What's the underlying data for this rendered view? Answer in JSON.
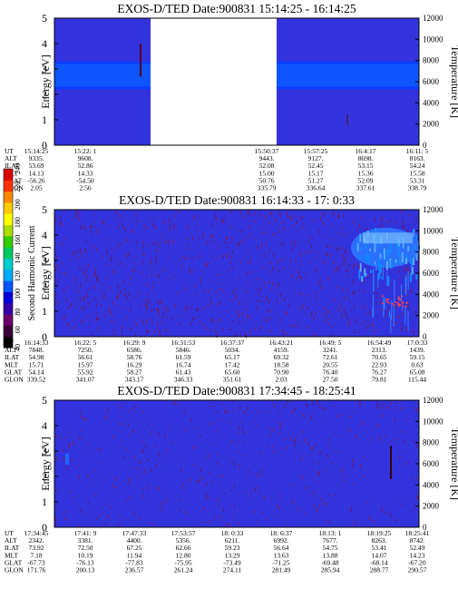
{
  "chart_data": [
    {
      "type": "heatmap",
      "title": "EXOS-D/TED   Date:900831   15:14:25 - 16:14:25",
      "ylabel": "Energy [eV]",
      "y2label": "Temperature [K]",
      "ylim": [
        0,
        5
      ],
      "y2lim": [
        0,
        12000
      ],
      "yticks": [
        "0",
        "1",
        "2",
        "3",
        "4",
        "5"
      ],
      "y2ticks": [
        "0",
        "2000",
        "4000",
        "6000",
        "8000",
        "10000",
        "12000"
      ],
      "band_center_ev": 2.75,
      "data_gap": true,
      "table_rows": [
        {
          "label": "UT",
          "values": [
            "15:14:25",
            "15:22: 1",
            "",
            "",
            "15:50:37",
            "15:57:25",
            "16:4:17",
            "16:11: 5"
          ]
        },
        {
          "label": "ALT",
          "values": [
            "9335.",
            "9608.",
            "",
            "",
            "9443.",
            "9127.",
            "8698.",
            "8163."
          ]
        },
        {
          "label": "ILAT",
          "values": [
            "53.69",
            "52.86",
            "",
            "",
            "52.08",
            "52.45",
            "53.15",
            "54.24"
          ]
        },
        {
          "label": "MLT",
          "values": [
            "14.13",
            "14.33",
            "",
            "",
            "15.00",
            "15.17",
            "15.36",
            "15.58"
          ]
        },
        {
          "label": "GLAT",
          "values": [
            "-56.26",
            "-54.50",
            "",
            "",
            "50.76",
            "51.27",
            "52.09",
            "53.31"
          ]
        },
        {
          "label": "GLON",
          "values": [
            "2.05",
            "2.56",
            "",
            "",
            "335.79",
            "336.64",
            "337.61",
            "338.79"
          ]
        }
      ]
    },
    {
      "type": "heatmap",
      "title": "EXOS-D/TED   Date:900831   16:14:33 - 17: 0:33",
      "ylabel": "Energy [eV]",
      "y2label": "Temperature [K]",
      "ylim": [
        0,
        5
      ],
      "y2lim": [
        0,
        12000
      ],
      "yticks": [
        "0",
        "1",
        "2",
        "3",
        "4",
        "5"
      ],
      "y2ticks": [
        "0",
        "2000",
        "4000",
        "6000",
        "8000",
        "10000",
        "12000"
      ],
      "colorbar": {
        "label": "Second Harmonic Current",
        "ticks": [
          "40",
          "60",
          "80",
          "100",
          "120",
          "140",
          "160",
          "180",
          "200",
          "220",
          "240"
        ],
        "colors": [
          "#000000",
          "#3a003a",
          "#6a006a",
          "#3300aa",
          "#0000dd",
          "#0055ff",
          "#00aaff",
          "#00cccc",
          "#00cc66",
          "#33cc00",
          "#aadd00",
          "#ffff00",
          "#ffcc00",
          "#ff8800",
          "#ff3300",
          "#dd0000"
        ]
      },
      "table_rows": [
        {
          "label": "UT",
          "values": [
            "16:14:33",
            "16:22: 5",
            "16:29: 9",
            "16:31:53",
            "16:37:37",
            "16:43:21",
            "16:49: 5",
            "16:54:49",
            "17:0:33"
          ]
        },
        {
          "label": "ALT",
          "values": [
            "7848.",
            "7250.",
            "6586.",
            "5846.",
            "5034.",
            "4159.",
            "3241.",
            "2313.",
            "1439."
          ]
        },
        {
          "label": "ILAT",
          "values": [
            "54.98",
            "56.61",
            "58.76",
            "61.59",
            "65.17",
            "69.32",
            "72.61",
            "70.65",
            "59.15"
          ]
        },
        {
          "label": "MLT",
          "values": [
            "15.71",
            "15.97",
            "16.29",
            "16.74",
            "17.42",
            "18.58",
            "20.55",
            "22.93",
            "0.63"
          ]
        },
        {
          "label": "GLAT",
          "values": [
            "54.14",
            "55.92",
            "58.27",
            "61.43",
            "65.60",
            "70.90",
            "76.40",
            "76.27",
            "65.08"
          ]
        },
        {
          "label": "GLON",
          "values": [
            "339.52",
            "341.07",
            "343.17",
            "346.33",
            "351.61",
            "2.03",
            "27.50",
            "79.81",
            "115.44"
          ]
        }
      ]
    },
    {
      "type": "heatmap",
      "title": "EXOS-D/TED   Date:900831   17:34:45 - 18:25:41",
      "ylabel": "Energy [eV]",
      "y2label": "Temperature [K]",
      "ylim": [
        0,
        5
      ],
      "y2lim": [
        0,
        12000
      ],
      "yticks": [
        "0",
        "1",
        "2",
        "3",
        "4",
        "5"
      ],
      "y2ticks": [
        "0",
        "2000",
        "4000",
        "6000",
        "8000",
        "10000",
        "12000"
      ],
      "table_rows": [
        {
          "label": "UT",
          "values": [
            "17:34:45",
            "17:41: 9",
            "17:47:33",
            "17:53:57",
            "18: 0:33",
            "18: 6:37",
            "18:13: 1",
            "18:19:25",
            "18:25:41"
          ]
        },
        {
          "label": "ALT",
          "values": [
            "2342.",
            "3381.",
            "4400.",
            "5356.",
            "6211.",
            "6992.",
            "7677.",
            "8263.",
            "8742."
          ]
        },
        {
          "label": "ILAT",
          "values": [
            "73.92",
            "72.50",
            "67.25",
            "62.66",
            "59.23",
            "56.64",
            "54.75",
            "53.41",
            "52.49"
          ]
        },
        {
          "label": "MLT",
          "values": [
            "7.18",
            "10.19",
            "11.94",
            "12.80",
            "13.29",
            "13.63",
            "13.88",
            "14.07",
            "14.23"
          ]
        },
        {
          "label": "GLAT",
          "values": [
            "-67.73",
            "-76.13",
            "-77.83",
            "-75.95",
            "-73.49",
            "-71.25",
            "-69.48",
            "-68.14",
            "-67.20"
          ]
        },
        {
          "label": "GLON",
          "values": [
            "171.76",
            "200.13",
            "236.57",
            "261.24",
            "274.11",
            "281.49",
            "285.94",
            "288.77",
            "290.57"
          ]
        }
      ]
    }
  ]
}
